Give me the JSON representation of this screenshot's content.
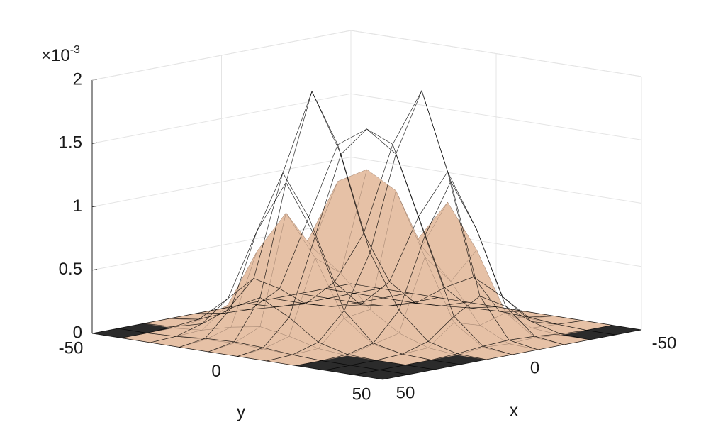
{
  "chart_data": {
    "type": "surface",
    "xlabel": "x",
    "ylabel": "y",
    "z_multiplier": {
      "base": "×10",
      "exponent": "-3"
    },
    "x": [
      -50,
      -40,
      -30,
      -20,
      -10,
      0,
      10,
      20,
      30,
      40,
      50
    ],
    "y": [
      -50,
      -40,
      -30,
      -20,
      -10,
      0,
      10,
      20,
      30,
      40,
      50
    ],
    "xlim": [
      -50,
      50
    ],
    "ylim": [
      -50,
      50
    ],
    "zlim": [
      0,
      2
    ],
    "xticks": [
      -50,
      0,
      50
    ],
    "yticks": [
      -50,
      0,
      50
    ],
    "zticks": [
      0,
      0.5,
      1,
      1.5,
      2
    ],
    "grid": true,
    "series": [
      {
        "color": "#e6c1a6",
        "z": [
          [
            0,
            0,
            0,
            0,
            0,
            0,
            0,
            0,
            0,
            0,
            0
          ],
          [
            0,
            0,
            0,
            0,
            0,
            0.02,
            0.01,
            0.02,
            0,
            0,
            0
          ],
          [
            0,
            0,
            0,
            0.01,
            0.02,
            0.18,
            0.12,
            0.18,
            0.02,
            0.01,
            0
          ],
          [
            0,
            0,
            0,
            0.05,
            0.1,
            0.66,
            0.43,
            0.64,
            0.08,
            0.02,
            0
          ],
          [
            0,
            0.01,
            0.02,
            0.22,
            0.25,
            1.15,
            0.67,
            0.98,
            0.12,
            0.03,
            0
          ],
          [
            0,
            0.02,
            0.08,
            0.66,
            0.5,
            1.28,
            0.5,
            0.66,
            0.08,
            0.02,
            0
          ],
          [
            0,
            0.03,
            0.12,
            0.98,
            0.67,
            1.15,
            0.25,
            0.22,
            0.02,
            0.01,
            0
          ],
          [
            0,
            0.02,
            0.08,
            0.64,
            0.43,
            0.66,
            0.1,
            0.05,
            0,
            0,
            0
          ],
          [
            0,
            0.01,
            0.02,
            0.18,
            0.12,
            0.18,
            0.02,
            0.01,
            0,
            0,
            0
          ],
          [
            0,
            0,
            0,
            0.02,
            0.01,
            0.02,
            0,
            0,
            0,
            0,
            0
          ],
          [
            0,
            0,
            0,
            0,
            0,
            0,
            0,
            0,
            0,
            0,
            0
          ]
        ]
      },
      {
        "color": "#000000",
        "z": [
          [
            0,
            0,
            0,
            0,
            0,
            0,
            0,
            0,
            0,
            0,
            0
          ],
          [
            0,
            0,
            0,
            0,
            0.01,
            0.03,
            0.04,
            0.03,
            0.01,
            0,
            0
          ],
          [
            0,
            0,
            0,
            0.01,
            0.07,
            0.23,
            0.35,
            0.23,
            0.07,
            0.01,
            0
          ],
          [
            0,
            0,
            0.01,
            0.06,
            0.28,
            0.83,
            1.22,
            0.8,
            0.23,
            0.03,
            0
          ],
          [
            0,
            0.01,
            0.07,
            0.28,
            0.7,
            1.44,
            1.9,
            1.22,
            0.35,
            0.04,
            0
          ],
          [
            0,
            0.03,
            0.23,
            0.83,
            1.44,
            1.6,
            1.44,
            0.83,
            0.23,
            0.03,
            0
          ],
          [
            0,
            0.04,
            0.35,
            1.22,
            1.9,
            1.44,
            0.7,
            0.28,
            0.07,
            0.01,
            0
          ],
          [
            0,
            0.03,
            0.23,
            0.8,
            1.22,
            0.83,
            0.28,
            0.06,
            0.01,
            0,
            0
          ],
          [
            0,
            0.01,
            0.07,
            0.23,
            0.35,
            0.23,
            0.07,
            0.01,
            0,
            0,
            0
          ],
          [
            0,
            0,
            0.01,
            0.03,
            0.04,
            0.03,
            0.01,
            0,
            0,
            0,
            0
          ],
          [
            0,
            0,
            0,
            0,
            0,
            0,
            0,
            0,
            0,
            0,
            0
          ]
        ]
      }
    ]
  }
}
